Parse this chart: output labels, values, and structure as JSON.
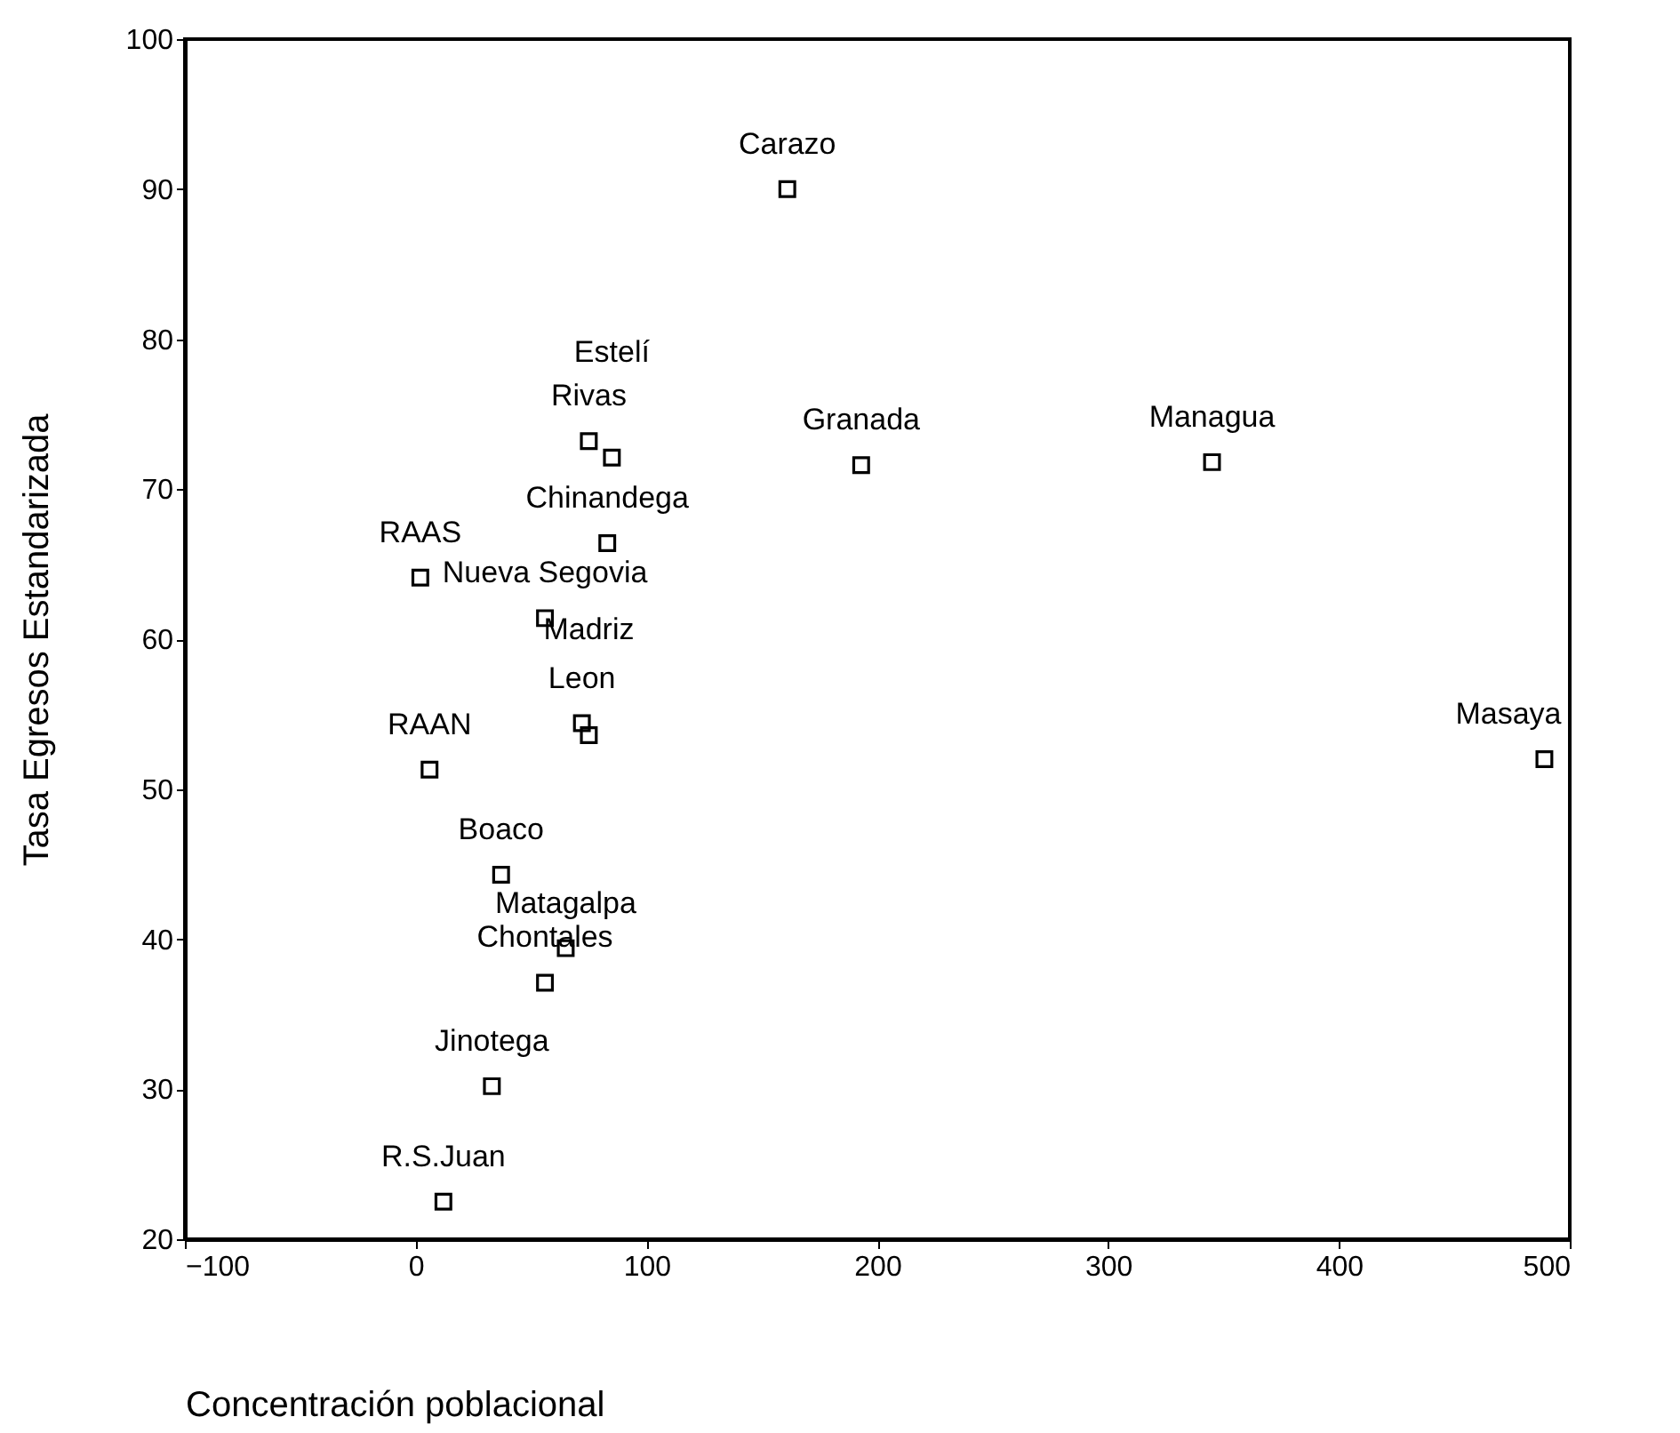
{
  "chart_data": {
    "type": "scatter",
    "xlabel": "Concentración poblacional",
    "ylabel": "Tasa Egresos Estandarizada",
    "x": [
      161,
      75,
      85,
      193,
      345,
      489,
      83,
      2,
      56,
      72,
      75,
      6,
      37,
      65,
      56,
      33,
      12
    ],
    "series": [
      {
        "color": "#000000",
        "values": [
          90,
          73.2,
          72.1,
          71.6,
          71.8,
          52,
          66.4,
          64.1,
          61.4,
          54.4,
          53.6,
          51.3,
          44.3,
          39.4,
          37.1,
          30.2,
          22.5
        ]
      }
    ],
    "annotations": [
      {
        "text": "Carazo",
        "x": 161,
        "y": 90
      },
      {
        "text": "Rivas",
        "x": 75,
        "y": 73.2
      },
      {
        "text": "Estelí",
        "x": 85,
        "y": 72.1
      },
      {
        "text": "Granada",
        "x": 193,
        "y": 71.6
      },
      {
        "text": "Managua",
        "x": 345,
        "y": 71.8
      },
      {
        "text": "Masaya",
        "x": 489,
        "y": 52
      },
      {
        "text": "Chinandega",
        "x": 83,
        "y": 66.4
      },
      {
        "text": "RAAS",
        "x": 2,
        "y": 64.1
      },
      {
        "text": "Nueva Segovia",
        "x": 56,
        "y": 61.4
      },
      {
        "text": "Leon",
        "x": 72,
        "y": 54.4
      },
      {
        "text": "Madriz",
        "x": 75,
        "y": 53.6
      },
      {
        "text": "RAAN",
        "x": 6,
        "y": 51.3
      },
      {
        "text": "Boaco",
        "x": 37,
        "y": 44.3
      },
      {
        "text": "Matagalpa",
        "x": 65,
        "y": 39.4
      },
      {
        "text": "Chontales",
        "x": 56,
        "y": 37.1
      },
      {
        "text": "Jinotega",
        "x": 33,
        "y": 30.2
      },
      {
        "text": "R.S.Juan",
        "x": 12,
        "y": 22.5
      }
    ],
    "xlim": [
      -100,
      500
    ],
    "xticks": [
      -100,
      0,
      100,
      200,
      300,
      400,
      500
    ],
    "ylim": [
      20,
      100
    ],
    "yticks": [
      20,
      30,
      40,
      50,
      60,
      70,
      80,
      90,
      100
    ],
    "grid": false,
    "marker": "square"
  }
}
